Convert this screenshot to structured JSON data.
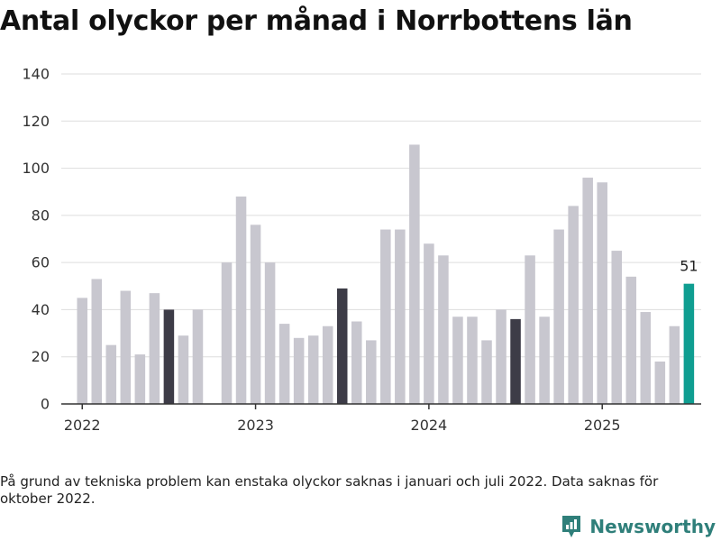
{
  "title": "Antal olyckor per månad i Norrbottens län",
  "footnote": "På grund av tekniska problem kan enstaka olyckor saknas i januari och juli 2022. Data saknas för oktober 2022.",
  "brand": {
    "name": "Newsworthy",
    "icon": "newsworthy-logo-icon",
    "color": "#2f7f7a"
  },
  "colors": {
    "default": "#c8c7cf",
    "highlight": "#3d3c47",
    "latest": "#0f9e91",
    "grid": "#dddddd",
    "axis": "#333333"
  },
  "chart_data": {
    "type": "bar",
    "title": "Antal olyckor per månad i Norrbottens län",
    "xlabel": "",
    "ylabel": "",
    "ylim": [
      0,
      140
    ],
    "yticks": [
      0,
      20,
      40,
      60,
      80,
      100,
      120,
      140
    ],
    "grid": true,
    "x_tick_labels": [
      {
        "label": "2022",
        "month": "2022-01"
      },
      {
        "label": "2023",
        "month": "2023-01"
      },
      {
        "label": "2024",
        "month": "2024-01"
      },
      {
        "label": "2025",
        "month": "2025-01"
      }
    ],
    "months": [
      "2022-01",
      "2022-02",
      "2022-03",
      "2022-04",
      "2022-05",
      "2022-06",
      "2022-07",
      "2022-08",
      "2022-09",
      "2022-10",
      "2022-11",
      "2022-12",
      "2023-01",
      "2023-02",
      "2023-03",
      "2023-04",
      "2023-05",
      "2023-06",
      "2023-07",
      "2023-08",
      "2023-09",
      "2023-10",
      "2023-11",
      "2023-12",
      "2024-01",
      "2024-02",
      "2024-03",
      "2024-04",
      "2024-05",
      "2024-06",
      "2024-07",
      "2024-08",
      "2024-09",
      "2024-10",
      "2024-11",
      "2024-12",
      "2025-01",
      "2025-02",
      "2025-03",
      "2025-04",
      "2025-05",
      "2025-06",
      "2025-07"
    ],
    "values": [
      45,
      53,
      25,
      48,
      21,
      47,
      40,
      29,
      40,
      null,
      60,
      88,
      76,
      60,
      34,
      28,
      29,
      33,
      49,
      35,
      27,
      74,
      74,
      110,
      68,
      63,
      37,
      37,
      27,
      40,
      36,
      63,
      37,
      74,
      84,
      96,
      94,
      65,
      54,
      39,
      18,
      33,
      51
    ],
    "highlighted_months": [
      "2022-07",
      "2023-07",
      "2024-07"
    ],
    "latest_month": "2025-07",
    "data_labels": [
      {
        "month": "2025-07",
        "text": "51"
      }
    ]
  }
}
